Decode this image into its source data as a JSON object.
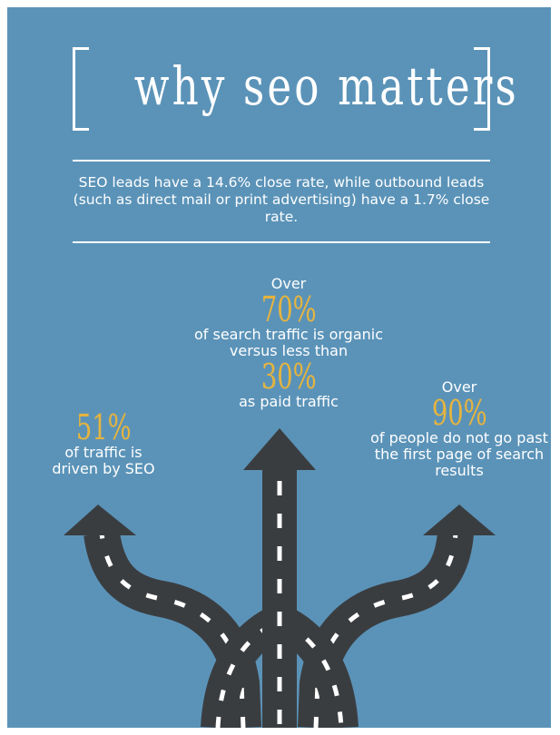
{
  "title": "why seo matters",
  "intro": "SEO leads have a 14.6% close rate, while outbound leads (such as direct mail or print advertising) have a 1.7% close rate.",
  "stats": {
    "center": {
      "prefix": "Over",
      "number_1": "70%",
      "text_1": "of search traffic is organic versus less than",
      "number_2": "30%",
      "text_2": "as paid traffic"
    },
    "left": {
      "number": "51%",
      "text": "of traffic is driven by SEO"
    },
    "right": {
      "prefix": "Over",
      "number": "90%",
      "text": "of people do not go past the first page of search results"
    }
  },
  "colors": {
    "background": "#5b93b8",
    "accent": "#e6b43e",
    "text": "#ffffff",
    "road": "#3a3d40",
    "road_marking": "#ffffff"
  },
  "icons": [
    "three-way-road-arrows"
  ]
}
